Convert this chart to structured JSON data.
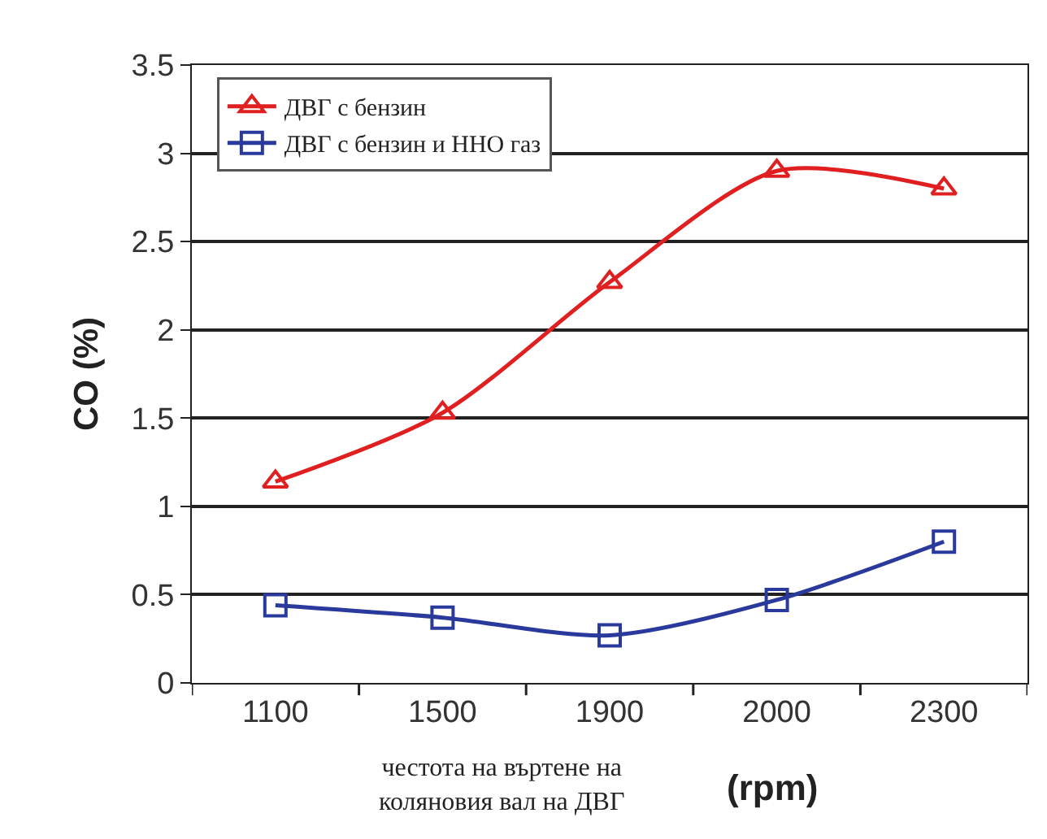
{
  "chart_data": {
    "type": "line",
    "ylabel": "CO (%)",
    "xlabel": "честота на въртене на\nколяновия вал на ДВГ",
    "annotations": [
      "(rpm)"
    ],
    "categories": [
      "1100",
      "1500",
      "1900",
      "2000",
      "2300"
    ],
    "series": [
      {
        "name": "ДВГ с бензин",
        "color": "#e02020",
        "marker": "triangle",
        "values": [
          1.14,
          1.53,
          2.27,
          2.9,
          2.8
        ]
      },
      {
        "name": "ДВГ с бензин и ННО газ",
        "color": "#2a3a9c",
        "marker": "square",
        "values": [
          0.44,
          0.37,
          0.27,
          0.47,
          0.8
        ]
      }
    ],
    "ylim": [
      0,
      3.5
    ],
    "yticks": [
      0,
      0.5,
      1,
      1.5,
      2,
      2.5,
      3,
      3.5
    ],
    "grid": "y",
    "legend": "top left",
    "line_style": "solid"
  }
}
